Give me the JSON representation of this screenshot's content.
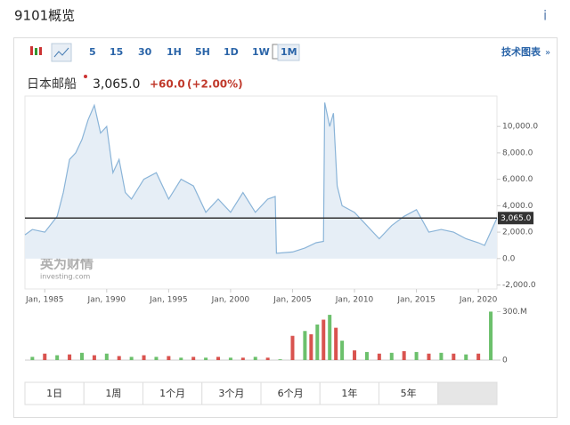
{
  "header": {
    "title": "9101概览",
    "info": "i"
  },
  "toolbar": {
    "intervals": [
      "5",
      "15",
      "30",
      "1H",
      "5H",
      "1D",
      "1W",
      "1M"
    ],
    "active": 7,
    "technical": "技术图表",
    "more": "»"
  },
  "quote": {
    "name": "日本邮船",
    "price": "3,065.0",
    "change": "+60.0",
    "change_pct": "(+2.00%)"
  },
  "watermark": {
    "brand": "英为财情",
    "site": "investing.com"
  },
  "chart_data": {
    "type": "area",
    "color": "#8ab4d8",
    "fill": "#e6eef6",
    "x": [
      1983.4,
      1984,
      1985,
      1986,
      1986.5,
      1987,
      1987.5,
      1988,
      1988.5,
      1989,
      1989.5,
      1990,
      1990.5,
      1991,
      1991.5,
      1992,
      1993,
      1994,
      1995,
      1996,
      1997,
      1998,
      1999,
      2000,
      2001,
      2002,
      2003,
      2003.6,
      2003.7,
      2005,
      2006,
      2006.9,
      2007.5,
      2007.6,
      2008,
      2008.3,
      2008.6,
      2009,
      2010,
      2011,
      2012,
      2013,
      2014,
      2015,
      2016,
      2017,
      2018,
      2019,
      2020,
      2020.5,
      2021.5
    ],
    "values": [
      1800,
      2200,
      2000,
      3200,
      5000,
      7500,
      8000,
      9000,
      10500,
      11600,
      9500,
      10000,
      6500,
      7500,
      5000,
      4500,
      6000,
      6500,
      4500,
      6000,
      5500,
      3500,
      4500,
      3500,
      5000,
      3500,
      4500,
      4700,
      400,
      500,
      800,
      1200,
      1300,
      11800,
      10000,
      11000,
      5500,
      4000,
      3500,
      2500,
      1500,
      2500,
      3200,
      3700,
      2000,
      2200,
      2000,
      1500,
      1200,
      1000,
      3065
    ],
    "xlim": [
      1983.4,
      2021.5
    ],
    "ylim": [
      -2300,
      12300
    ],
    "xticks": [
      {
        "value": 1985,
        "label": "Jan, 1985"
      },
      {
        "value": 1990,
        "label": "Jan, 1990"
      },
      {
        "value": 1995,
        "label": "Jan, 1995"
      },
      {
        "value": 2000,
        "label": "Jan, 2000"
      },
      {
        "value": 2005,
        "label": "Jan, 2005"
      },
      {
        "value": 2010,
        "label": "Jan, 2010"
      },
      {
        "value": 2015,
        "label": "Jan, 2015"
      },
      {
        "value": 2020,
        "label": "Jan, 2020"
      }
    ],
    "yticks": [
      {
        "value": 10000,
        "label": "10,000.0"
      },
      {
        "value": 8000,
        "label": "8,000.0"
      },
      {
        "value": 6000,
        "label": "6,000.0"
      },
      {
        "value": 4000,
        "label": "4,000.0"
      },
      {
        "value": 2000,
        "label": "2,000.0"
      },
      {
        "value": 0,
        "label": "0.0"
      },
      {
        "value": -2000,
        "label": "-2,000.0"
      }
    ],
    "current": {
      "value": 3065,
      "label": "3,065.0"
    },
    "volume": {
      "x": [
        1984,
        1985,
        1986,
        1987,
        1988,
        1989,
        1990,
        1991,
        1992,
        1993,
        1994,
        1995,
        1996,
        1997,
        1998,
        1999,
        2000,
        2001,
        2002,
        2003,
        2004,
        2005,
        2006,
        2006.5,
        2007,
        2007.5,
        2008,
        2008.5,
        2009,
        2010,
        2011,
        2012,
        2013,
        2014,
        2015,
        2016,
        2017,
        2018,
        2019,
        2020,
        2021
      ],
      "values": [
        20,
        40,
        30,
        35,
        45,
        30,
        40,
        25,
        20,
        30,
        20,
        25,
        15,
        20,
        15,
        20,
        15,
        15,
        20,
        15,
        5,
        150,
        180,
        160,
        220,
        250,
        280,
        200,
        120,
        60,
        50,
        40,
        45,
        55,
        50,
        40,
        45,
        40,
        35,
        40,
        300
      ],
      "ylim": [
        0,
        330
      ],
      "yticks": [
        {
          "value": 300,
          "label": "300.M"
        },
        0
      ],
      "up": "#6cc06c",
      "down": "#d9534f"
    }
  },
  "ranges": {
    "labels": [
      "1日",
      "1周",
      "1个月",
      "3个月",
      "6个月",
      "1年",
      "5年",
      null
    ],
    "active": 7
  }
}
